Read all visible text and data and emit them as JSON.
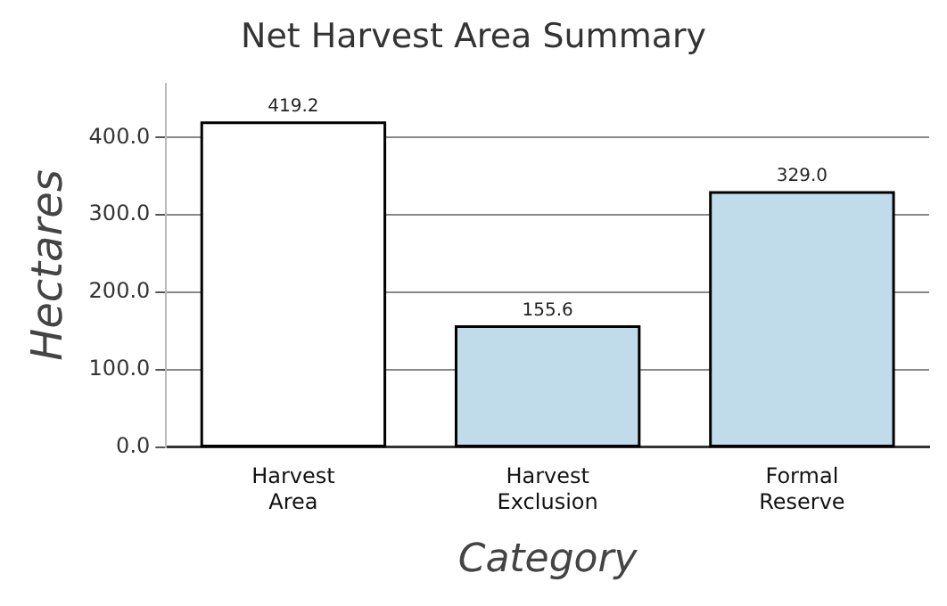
{
  "chart_data": {
    "type": "bar",
    "title": "Net Harvest Area Summary",
    "xlabel": "Category",
    "ylabel": "Hectares",
    "categories": [
      "Harvest Area",
      "Harvest Exclusion",
      "Formal Reserve"
    ],
    "values": [
      419.2,
      155.6,
      329.0
    ],
    "colors": [
      "#ffffff",
      "#c0dcea",
      "#c0dcea"
    ],
    "ylim": [
      0,
      470
    ],
    "yticks": [
      {
        "value": 0,
        "label": "0.0"
      },
      {
        "value": 100,
        "label": "100.0"
      },
      {
        "value": 200,
        "label": "200.0"
      },
      {
        "value": 300,
        "label": "300.0"
      },
      {
        "value": 400,
        "label": "400.0"
      }
    ],
    "value_labels": [
      "419.2",
      "155.6",
      "329.0"
    ],
    "grid": "y",
    "legend": false
  }
}
